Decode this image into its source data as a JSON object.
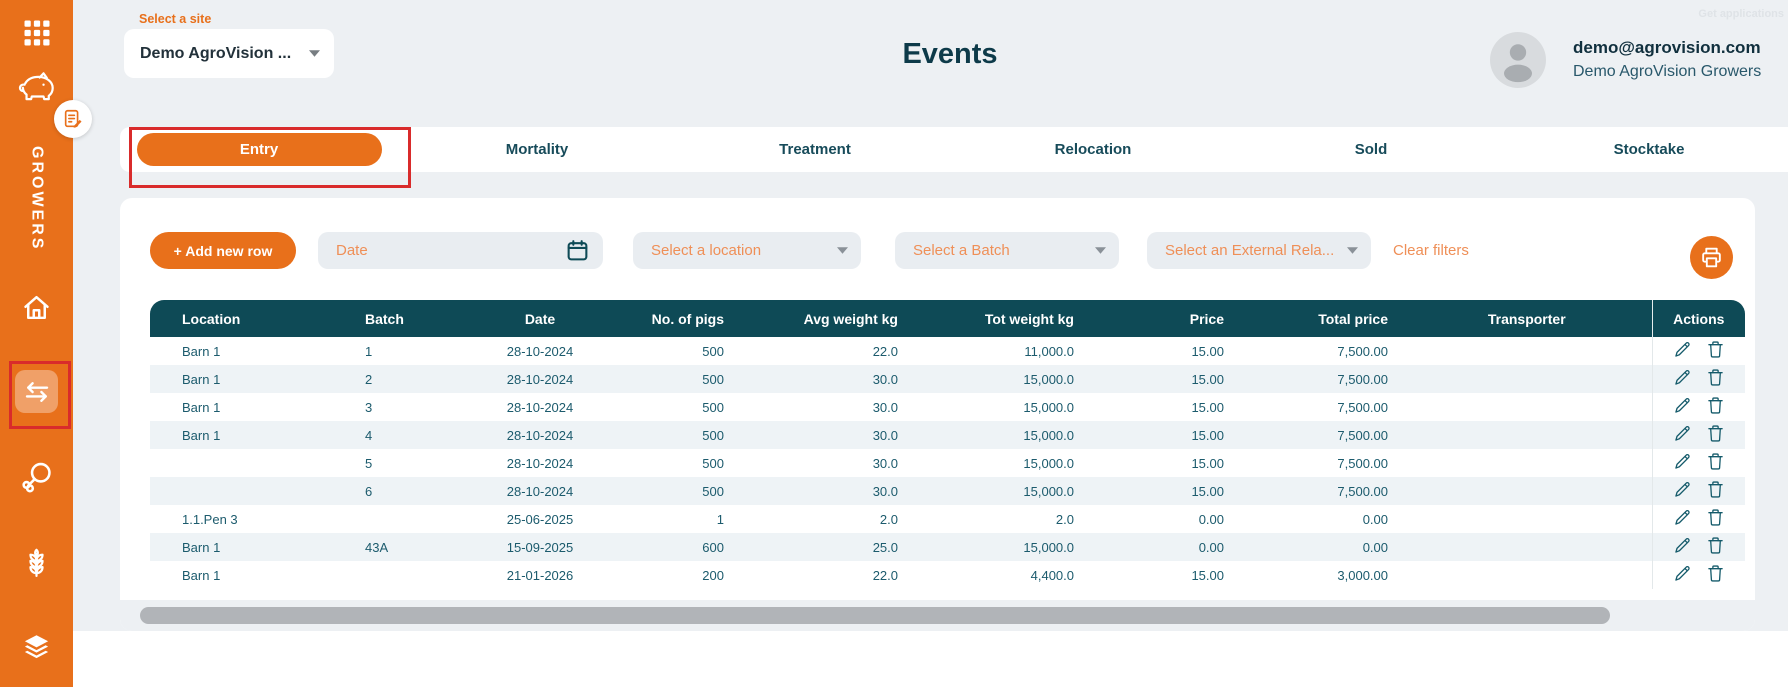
{
  "colors": {
    "accent": "#e8701b",
    "placeholder_orange": "#ef8f57",
    "table_header_teal": "#0e4a56",
    "annotation_red": "#d92b2b",
    "text_teal": "#1c5b6d"
  },
  "topbar": {
    "get_applications": "Get applications"
  },
  "site_selector": {
    "label": "Select a site",
    "value": "Demo AgroVision ..."
  },
  "page_title": "Events",
  "user": {
    "email": "demo@agrovision.com",
    "org": "Demo AgroVision Growers"
  },
  "sidebar": {
    "brand_text": "GROWERS",
    "icons": [
      "grid-icon",
      "pig-icon",
      "note-pencil-icon",
      "home-icon",
      "exchange-icon",
      "drumstick-icon",
      "wheat-icon",
      "layers-icon"
    ],
    "active_icon": "exchange-icon"
  },
  "tabs": {
    "items": [
      {
        "label": "Entry",
        "active": true
      },
      {
        "label": "Mortality",
        "active": false
      },
      {
        "label": "Treatment",
        "active": false
      },
      {
        "label": "Relocation",
        "active": false
      },
      {
        "label": "Sold",
        "active": false
      },
      {
        "label": "Stocktake",
        "active": false
      }
    ]
  },
  "filters": {
    "add_button": "+ Add new row",
    "date_placeholder": "Date",
    "location_placeholder": "Select a location",
    "batch_placeholder": "Select a Batch",
    "external_relation_placeholder": "Select an External Rela...",
    "clear_label": "Clear filters"
  },
  "table": {
    "columns": [
      "Location",
      "Batch",
      "Date",
      "No. of pigs",
      "Avg weight kg",
      "Tot weight kg",
      "Price",
      "Total price",
      "Transporter",
      "Actions"
    ],
    "rows": [
      [
        "Barn 1",
        "1",
        "28-10-2024",
        "500",
        "22.0",
        "11,000.0",
        "15.00",
        "7,500.00",
        ""
      ],
      [
        "Barn 1",
        "2",
        "28-10-2024",
        "500",
        "30.0",
        "15,000.0",
        "15.00",
        "7,500.00",
        ""
      ],
      [
        "Barn 1",
        "3",
        "28-10-2024",
        "500",
        "30.0",
        "15,000.0",
        "15.00",
        "7,500.00",
        ""
      ],
      [
        "Barn 1",
        "4",
        "28-10-2024",
        "500",
        "30.0",
        "15,000.0",
        "15.00",
        "7,500.00",
        ""
      ],
      [
        "",
        "5",
        "28-10-2024",
        "500",
        "30.0",
        "15,000.0",
        "15.00",
        "7,500.00",
        ""
      ],
      [
        "",
        "6",
        "28-10-2024",
        "500",
        "30.0",
        "15,000.0",
        "15.00",
        "7,500.00",
        ""
      ],
      [
        "1.1.Pen 3",
        "",
        "25-06-2025",
        "1",
        "2.0",
        "2.0",
        "0.00",
        "0.00",
        ""
      ],
      [
        "Barn 1",
        "43A",
        "15-09-2025",
        "600",
        "25.0",
        "15,000.0",
        "0.00",
        "0.00",
        ""
      ],
      [
        "Barn 1",
        "",
        "21-01-2026",
        "200",
        "22.0",
        "4,400.0",
        "15.00",
        "3,000.00",
        ""
      ]
    ]
  }
}
